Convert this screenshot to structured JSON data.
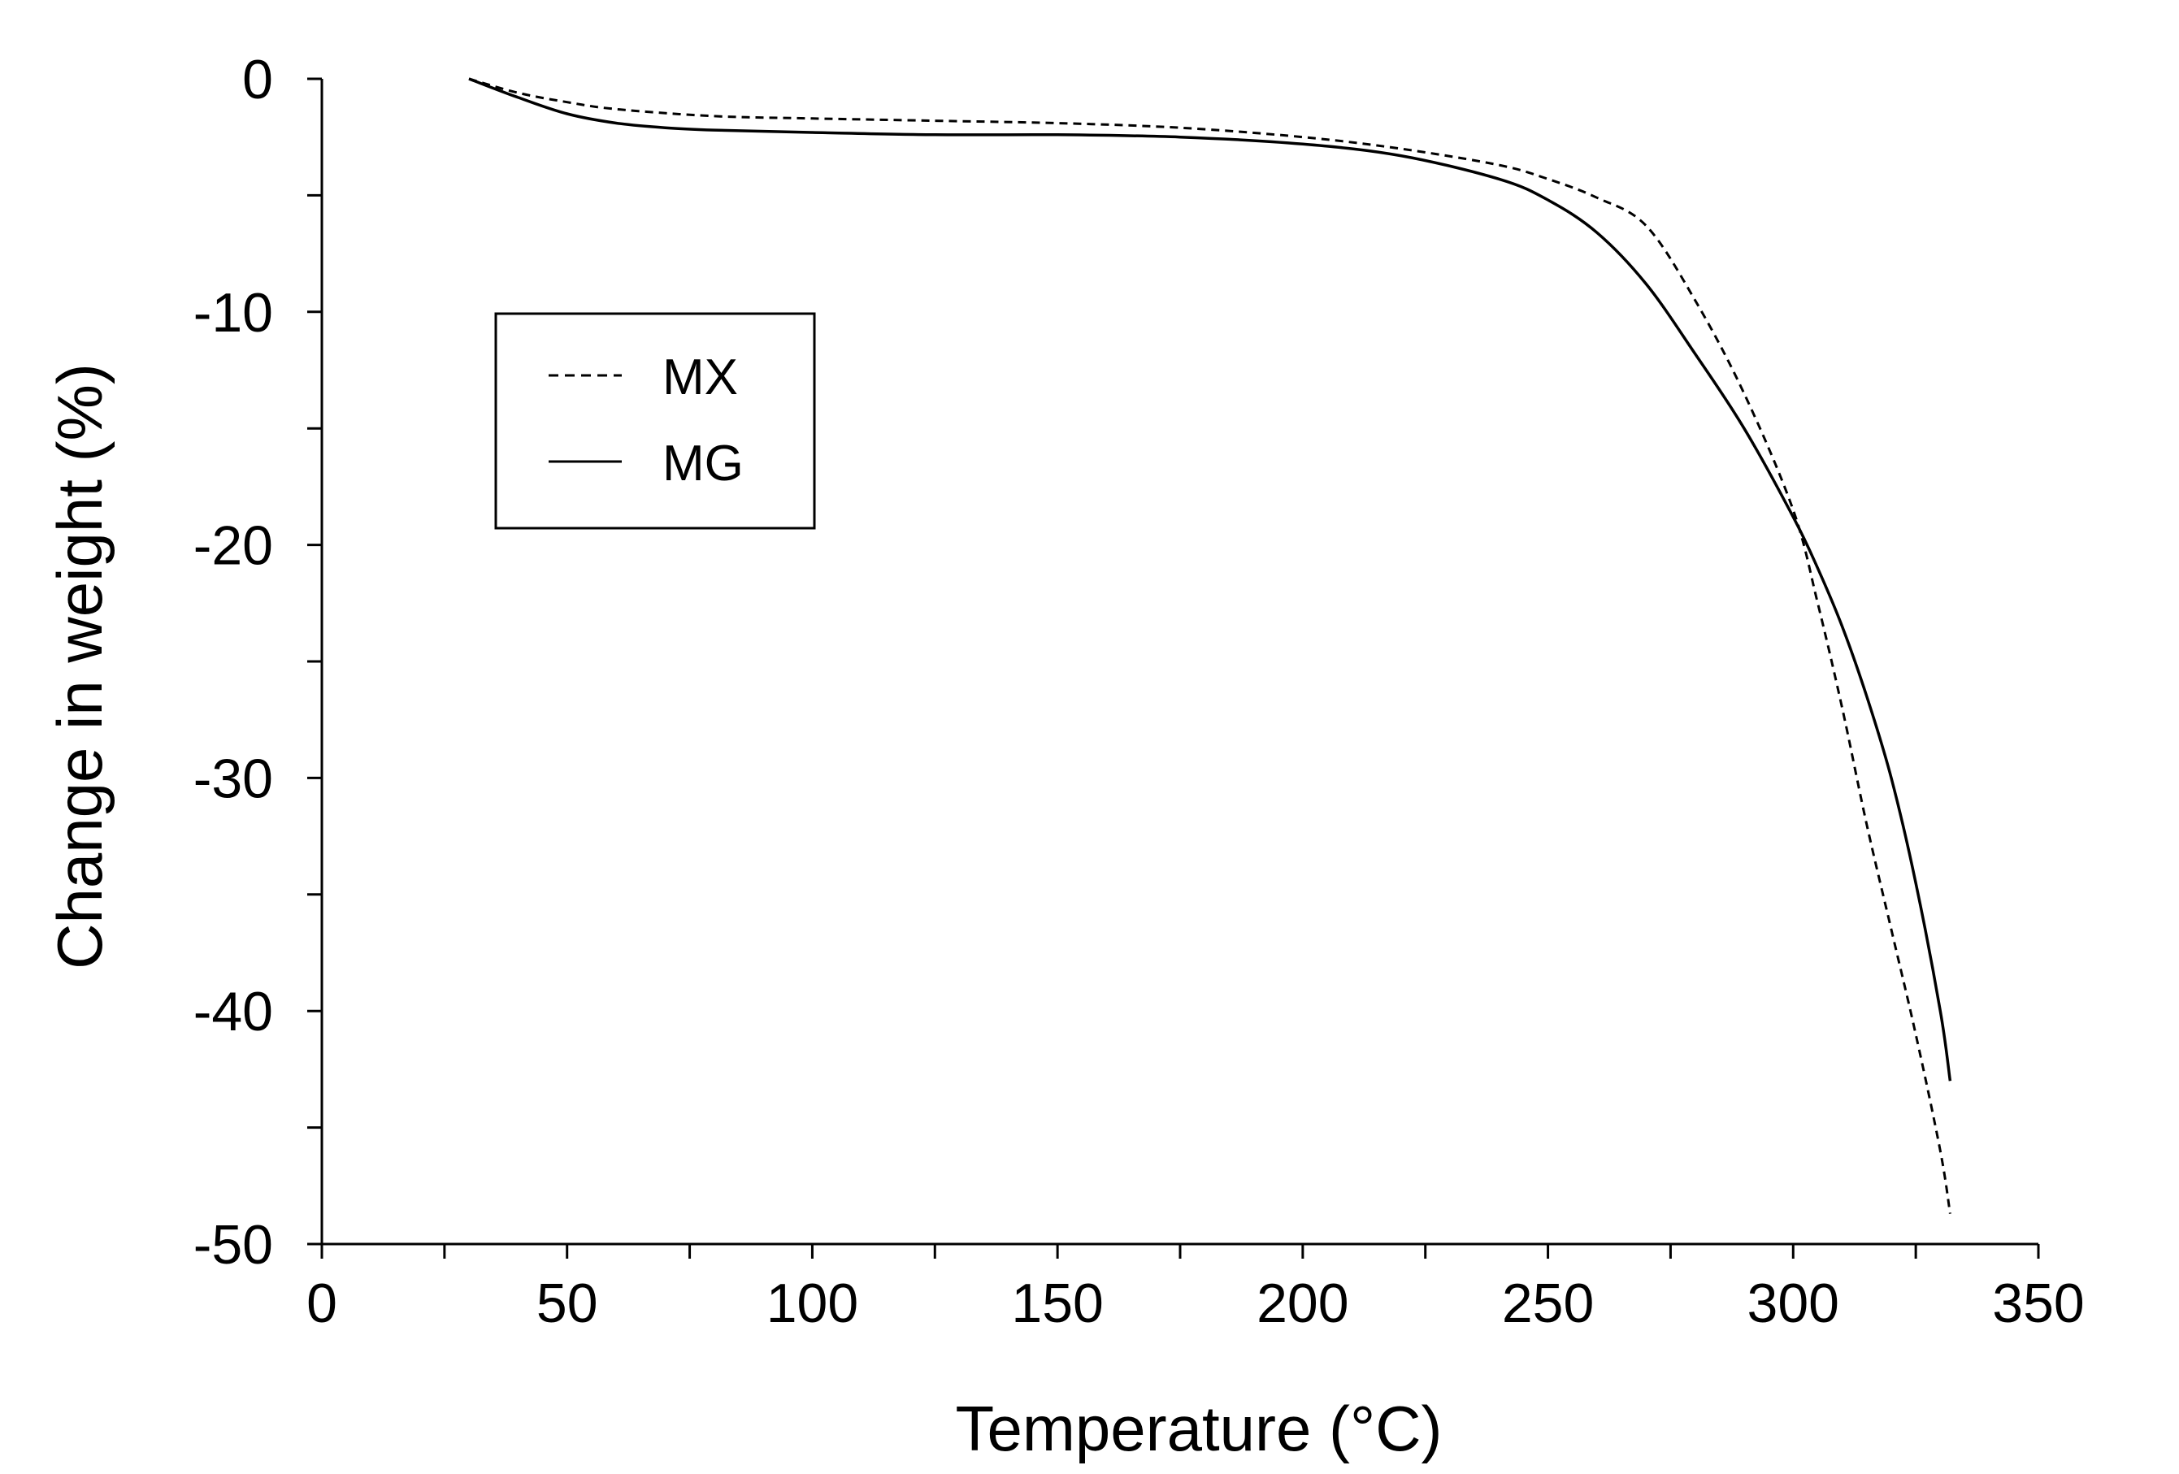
{
  "chart_data": {
    "type": "line",
    "title": "",
    "xlabel": "Temperature (°C)",
    "ylabel": "Change in weight (%)",
    "xlim": [
      0,
      350
    ],
    "ylim": [
      -50,
      0
    ],
    "xticks": [
      0,
      50,
      100,
      150,
      200,
      250,
      300,
      350
    ],
    "xtick_labels": [
      "0",
      "50",
      "100",
      "150",
      "200",
      "250",
      "300",
      "350"
    ],
    "yticks": [
      0,
      -10,
      -20,
      -30,
      -40,
      -50
    ],
    "ytick_labels": [
      "0",
      "-10",
      "-20",
      "-30",
      "-40",
      "-50"
    ],
    "grid": false,
    "legend_position": "upper-left",
    "series": [
      {
        "name": "MX",
        "style": "dashed",
        "x": [
          30,
          40,
          50,
          60,
          80,
          100,
          125,
          150,
          175,
          200,
          220,
          240,
          250,
          260,
          270,
          280,
          290,
          300,
          305,
          310,
          315,
          320,
          325,
          330,
          332
        ],
        "y": [
          0,
          -0.6,
          -1.0,
          -1.3,
          -1.6,
          -1.7,
          -1.8,
          -1.9,
          -2.1,
          -2.5,
          -3.0,
          -3.7,
          -4.3,
          -5.1,
          -6.3,
          -9.5,
          -13.5,
          -18.5,
          -22.5,
          -27.0,
          -32.0,
          -36.5,
          -41.0,
          -46.0,
          -48.7
        ]
      },
      {
        "name": "MG",
        "style": "solid",
        "x": [
          30,
          40,
          50,
          60,
          70,
          80,
          100,
          125,
          150,
          175,
          200,
          220,
          240,
          250,
          260,
          270,
          280,
          290,
          300,
          305,
          310,
          315,
          320,
          325,
          330,
          332
        ],
        "y": [
          0,
          -0.8,
          -1.5,
          -1.9,
          -2.1,
          -2.2,
          -2.3,
          -2.4,
          -2.4,
          -2.5,
          -2.8,
          -3.3,
          -4.3,
          -5.2,
          -6.6,
          -8.8,
          -11.8,
          -15.0,
          -18.8,
          -21.0,
          -23.5,
          -26.5,
          -30.0,
          -34.5,
          -40.0,
          -43.0
        ]
      }
    ]
  }
}
